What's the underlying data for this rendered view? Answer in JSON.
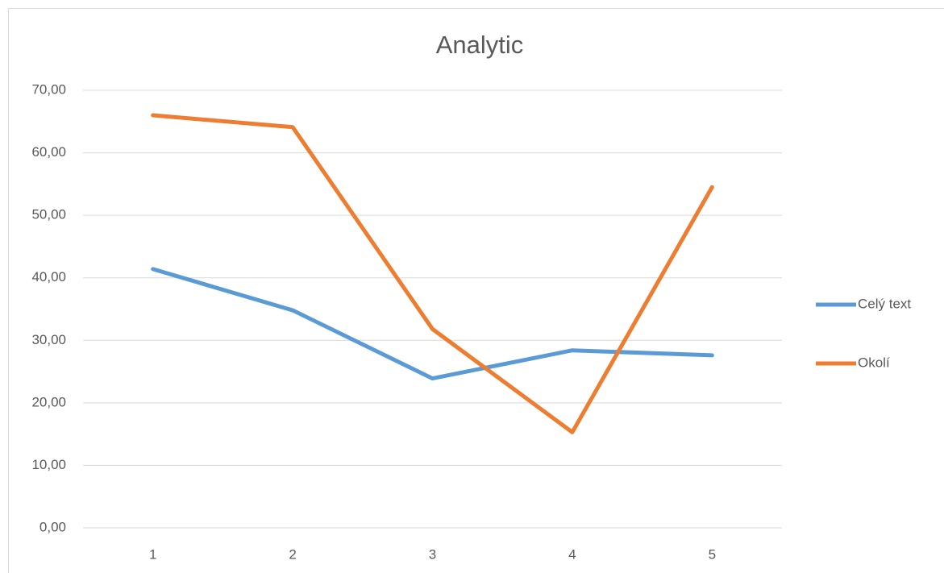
{
  "chart_data": {
    "type": "line",
    "title": "Analytic",
    "categories": [
      "1",
      "2",
      "3",
      "4",
      "5"
    ],
    "series": [
      {
        "name": "Celý text",
        "color": "#5b9bd5",
        "values": [
          41.4,
          34.8,
          23.9,
          28.4,
          27.6
        ]
      },
      {
        "name": "Okolí",
        "color": "#ed7d31",
        "values": [
          66.0,
          64.1,
          31.8,
          15.3,
          54.5
        ]
      }
    ],
    "ylim": [
      0,
      70
    ],
    "yticks": [
      {
        "value": 0,
        "label": "0,00"
      },
      {
        "value": 10,
        "label": "10,00"
      },
      {
        "value": 20,
        "label": "20,00"
      },
      {
        "value": 30,
        "label": "30,00"
      },
      {
        "value": 40,
        "label": "40,00"
      },
      {
        "value": 50,
        "label": "50,00"
      },
      {
        "value": 60,
        "label": "60,00"
      },
      {
        "value": 70,
        "label": "70,00"
      }
    ],
    "grid": true,
    "legend": "right"
  }
}
